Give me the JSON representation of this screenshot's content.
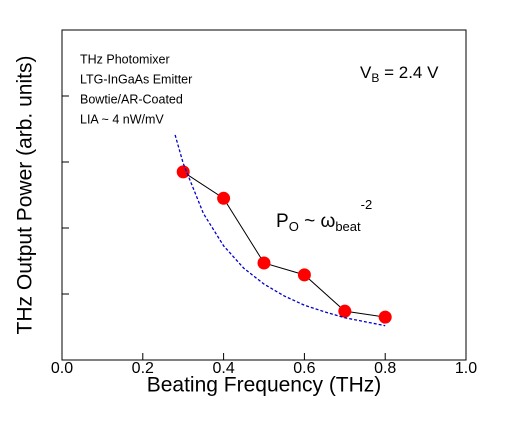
{
  "chart_data": {
    "type": "scatter-line",
    "x_label": "Beating  Frequency  (THz)",
    "y_label": "THz  Output  Power  (arb. units)",
    "xlim": [
      0,
      1
    ],
    "ylim": [
      0,
      5
    ],
    "xticks": [
      {
        "value": 0,
        "label": "0.0"
      },
      0.2,
      0.4,
      0.6,
      0.8,
      {
        "value": 1,
        "label": "1.0"
      }
    ],
    "yticks": [
      1,
      2,
      3,
      4
    ],
    "annotations": [
      "THz Photomixer",
      "LTG-InGaAs Emitter",
      "Bowtie/AR-Coated",
      "LIA ~ 4 nW/mV"
    ],
    "bias": [
      "V",
      "B",
      " = 2.4 V"
    ],
    "formula": [
      "P",
      "O",
      " ~ ω",
      "beat",
      "-2"
    ],
    "series": [
      {
        "color": "#ff0000",
        "x": [
          0.3,
          0.4,
          0.5,
          0.6,
          0.7,
          0.8
        ],
        "values": [
          2.85,
          2.45,
          1.47,
          1.29,
          0.74,
          0.65
        ]
      },
      {
        "color": "#0000cc",
        "dashed": true,
        "x": [
          0.28,
          0.3,
          0.35,
          0.4,
          0.45,
          0.5,
          0.55,
          0.6,
          0.65,
          0.7,
          0.75,
          0.8
        ],
        "values": [
          3.41,
          2.98,
          2.22,
          1.73,
          1.39,
          1.15,
          0.97,
          0.83,
          0.73,
          0.64,
          0.58,
          0.52
        ]
      }
    ]
  }
}
